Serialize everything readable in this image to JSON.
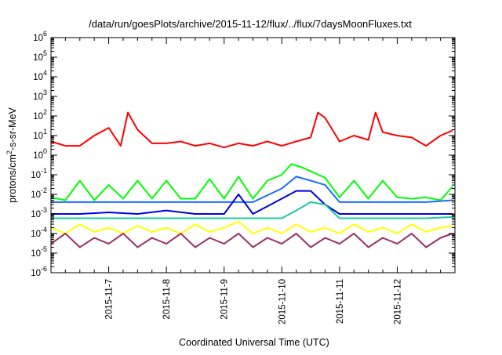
{
  "chart_data": {
    "type": "line",
    "title": "/data/run/goesPlots/archive/2015-11-12/flux/../flux/7daysMoonFluxes.txt",
    "xlabel": "Coordinated Universal Time (UTC)",
    "ylabel": "protons/cm²-s-sr-MeV",
    "xlim": [
      "2015-11-06 00:00",
      "2015-11-13 00:00"
    ],
    "ylim": [
      1e-06,
      1000000.0
    ],
    "y_scale": "log",
    "grid": false,
    "legend": "none",
    "x_tick_labels": [
      "2015-11-7",
      "2015-11-8",
      "2015-11-9",
      "2015-11-10",
      "2015-11-11",
      "2015-11-12"
    ],
    "y_tick_labels": [
      {
        "base": "10",
        "exp": "-6"
      },
      {
        "base": "10",
        "exp": "-5"
      },
      {
        "base": "10",
        "exp": "-4"
      },
      {
        "base": "10",
        "exp": "-3"
      },
      {
        "base": "10",
        "exp": "-2"
      },
      {
        "base": "10",
        "exp": "-1"
      },
      {
        "base": "10",
        "exp": "0"
      },
      {
        "base": "10",
        "exp": "1"
      },
      {
        "base": "10",
        "exp": "2"
      },
      {
        "base": "10",
        "exp": "3"
      },
      {
        "base": "10",
        "exp": "4"
      },
      {
        "base": "10",
        "exp": "5"
      },
      {
        "base": "10",
        "exp": "6"
      }
    ],
    "series": [
      {
        "color": "#ff0000",
        "x": [
          "2015-11-06 00:00",
          "2015-11-06 06:00",
          "2015-11-06 12:00",
          "2015-11-06 18:00",
          "2015-11-07 00:00",
          "2015-11-07 05:00",
          "2015-11-07 08:00",
          "2015-11-07 12:00",
          "2015-11-07 18:00",
          "2015-11-08 00:00",
          "2015-11-08 06:00",
          "2015-11-08 12:00",
          "2015-11-08 18:00",
          "2015-11-09 00:00",
          "2015-11-09 06:00",
          "2015-11-09 12:00",
          "2015-11-09 18:00",
          "2015-11-10 00:00",
          "2015-11-10 06:00",
          "2015-11-10 12:00",
          "2015-11-10 15:00",
          "2015-11-10 18:00",
          "2015-11-11 00:00",
          "2015-11-11 06:00",
          "2015-11-11 12:00",
          "2015-11-11 15:00",
          "2015-11-11 18:00",
          "2015-11-12 00:00",
          "2015-11-12 06:00",
          "2015-11-12 12:00",
          "2015-11-12 18:00",
          "2015-11-12 23:00"
        ],
        "y": [
          5,
          3,
          3,
          10,
          25,
          3,
          150,
          20,
          4,
          4,
          5,
          3,
          4,
          2.5,
          4,
          3,
          5,
          3,
          5,
          8,
          150,
          80,
          5,
          10,
          6,
          150,
          15,
          10,
          8,
          3,
          10,
          18
        ]
      },
      {
        "color": "#00ff00",
        "x": [
          "2015-11-06 00:00",
          "2015-11-06 06:00",
          "2015-11-06 12:00",
          "2015-11-06 18:00",
          "2015-11-07 00:00",
          "2015-11-07 06:00",
          "2015-11-07 12:00",
          "2015-11-07 18:00",
          "2015-11-08 00:00",
          "2015-11-08 06:00",
          "2015-11-08 12:00",
          "2015-11-08 18:00",
          "2015-11-09 00:00",
          "2015-11-09 06:00",
          "2015-11-09 12:00",
          "2015-11-09 18:00",
          "2015-11-10 00:00",
          "2015-11-10 04:00",
          "2015-11-10 08:00",
          "2015-11-10 12:00",
          "2015-11-10 18:00",
          "2015-11-11 00:00",
          "2015-11-11 06:00",
          "2015-11-11 12:00",
          "2015-11-11 18:00",
          "2015-11-12 00:00",
          "2015-11-12 06:00",
          "2015-11-12 12:00",
          "2015-11-12 18:00",
          "2015-11-12 23:00"
        ],
        "y": [
          0.007,
          0.005,
          0.05,
          0.005,
          0.03,
          0.006,
          0.05,
          0.006,
          0.05,
          0.006,
          0.006,
          0.06,
          0.006,
          0.08,
          0.006,
          0.05,
          0.1,
          0.35,
          0.25,
          0.15,
          0.07,
          0.007,
          0.05,
          0.006,
          0.05,
          0.007,
          0.006,
          0.007,
          0.005,
          0.025
        ]
      },
      {
        "color": "#1a6cff",
        "x": [
          "2015-11-06 00:00",
          "2015-11-06 12:00",
          "2015-11-07 00:00",
          "2015-11-07 12:00",
          "2015-11-08 00:00",
          "2015-11-08 12:00",
          "2015-11-09 00:00",
          "2015-11-09 12:00",
          "2015-11-10 00:00",
          "2015-11-10 06:00",
          "2015-11-10 12:00",
          "2015-11-10 18:00",
          "2015-11-11 00:00",
          "2015-11-11 12:00",
          "2015-11-12 00:00",
          "2015-11-12 12:00",
          "2015-11-12 23:00"
        ],
        "y": [
          0.004,
          0.004,
          0.004,
          0.004,
          0.004,
          0.004,
          0.004,
          0.004,
          0.02,
          0.08,
          0.05,
          0.03,
          0.004,
          0.004,
          0.004,
          0.004,
          0.005
        ]
      },
      {
        "color": "#0000e0",
        "x": [
          "2015-11-06 00:00",
          "2015-11-06 12:00",
          "2015-11-07 00:00",
          "2015-11-07 12:00",
          "2015-11-08 00:00",
          "2015-11-08 12:00",
          "2015-11-09 00:00",
          "2015-11-09 06:00",
          "2015-11-09 12:00",
          "2015-11-10 00:00",
          "2015-11-10 06:00",
          "2015-11-10 12:00",
          "2015-11-10 18:00",
          "2015-11-11 00:00",
          "2015-11-11 12:00",
          "2015-11-12 00:00",
          "2015-11-12 12:00",
          "2015-11-12 23:00"
        ],
        "y": [
          0.001,
          0.001,
          0.0012,
          0.001,
          0.0015,
          0.001,
          0.001,
          0.01,
          0.001,
          0.006,
          0.015,
          0.015,
          0.003,
          0.001,
          0.001,
          0.001,
          0.001,
          0.001
        ]
      },
      {
        "color": "#20c8a0",
        "x": [
          "2015-11-06 00:00",
          "2015-11-06 12:00",
          "2015-11-07 00:00",
          "2015-11-07 12:00",
          "2015-11-08 00:00",
          "2015-11-08 12:00",
          "2015-11-09 00:00",
          "2015-11-09 12:00",
          "2015-11-10 00:00",
          "2015-11-10 06:00",
          "2015-11-10 12:00",
          "2015-11-10 18:00",
          "2015-11-11 00:00",
          "2015-11-11 12:00",
          "2015-11-12 00:00",
          "2015-11-12 12:00",
          "2015-11-12 23:00"
        ],
        "y": [
          0.0006,
          0.0006,
          0.0006,
          0.0006,
          0.0006,
          0.0006,
          0.0006,
          0.0006,
          0.0006,
          0.0015,
          0.004,
          0.003,
          0.0006,
          0.0006,
          0.0006,
          0.0006,
          0.0007
        ]
      },
      {
        "color": "#ffff00",
        "x": [
          "2015-11-06 00:00",
          "2015-11-06 06:00",
          "2015-11-06 12:00",
          "2015-11-06 18:00",
          "2015-11-07 00:00",
          "2015-11-07 06:00",
          "2015-11-07 12:00",
          "2015-11-07 18:00",
          "2015-11-08 00:00",
          "2015-11-08 06:00",
          "2015-11-08 12:00",
          "2015-11-08 18:00",
          "2015-11-09 00:00",
          "2015-11-09 06:00",
          "2015-11-09 12:00",
          "2015-11-09 18:00",
          "2015-11-10 00:00",
          "2015-11-10 06:00",
          "2015-11-10 12:00",
          "2015-11-10 18:00",
          "2015-11-11 00:00",
          "2015-11-11 06:00",
          "2015-11-11 12:00",
          "2015-11-11 18:00",
          "2015-11-12 00:00",
          "2015-11-12 06:00",
          "2015-11-12 12:00",
          "2015-11-12 18:00",
          "2015-11-12 23:00"
        ],
        "y": [
          0.0002,
          0.0001,
          0.0003,
          0.00012,
          0.0002,
          0.0001,
          0.00025,
          0.00012,
          0.0002,
          0.0001,
          0.0003,
          0.00012,
          0.0002,
          0.0004,
          0.0001,
          0.0002,
          0.0001,
          0.0003,
          0.00012,
          0.0002,
          0.0001,
          0.0003,
          0.00012,
          0.0002,
          0.0001,
          0.0003,
          0.00012,
          0.0002,
          0.00025
        ]
      },
      {
        "color": "#993366",
        "x": [
          "2015-11-06 00:00",
          "2015-11-06 06:00",
          "2015-11-06 12:00",
          "2015-11-06 18:00",
          "2015-11-07 00:00",
          "2015-11-07 06:00",
          "2015-11-07 12:00",
          "2015-11-07 18:00",
          "2015-11-08 00:00",
          "2015-11-08 06:00",
          "2015-11-08 12:00",
          "2015-11-08 18:00",
          "2015-11-09 00:00",
          "2015-11-09 06:00",
          "2015-11-09 12:00",
          "2015-11-09 18:00",
          "2015-11-10 00:00",
          "2015-11-10 06:00",
          "2015-11-10 12:00",
          "2015-11-10 18:00",
          "2015-11-11 00:00",
          "2015-11-11 06:00",
          "2015-11-11 12:00",
          "2015-11-11 18:00",
          "2015-11-12 00:00",
          "2015-11-12 06:00",
          "2015-11-12 12:00",
          "2015-11-12 18:00",
          "2015-11-12 23:00"
        ],
        "y": [
          3e-05,
          0.0001,
          2e-05,
          6e-05,
          3e-05,
          0.0001,
          2e-05,
          6e-05,
          3e-05,
          0.0001,
          2e-05,
          6e-05,
          3e-05,
          0.0001,
          2e-05,
          6e-05,
          3e-05,
          0.0001,
          2e-05,
          6e-05,
          3e-05,
          0.0001,
          2e-05,
          6e-05,
          3e-05,
          0.0001,
          2e-05,
          6e-05,
          0.0001
        ]
      }
    ]
  }
}
